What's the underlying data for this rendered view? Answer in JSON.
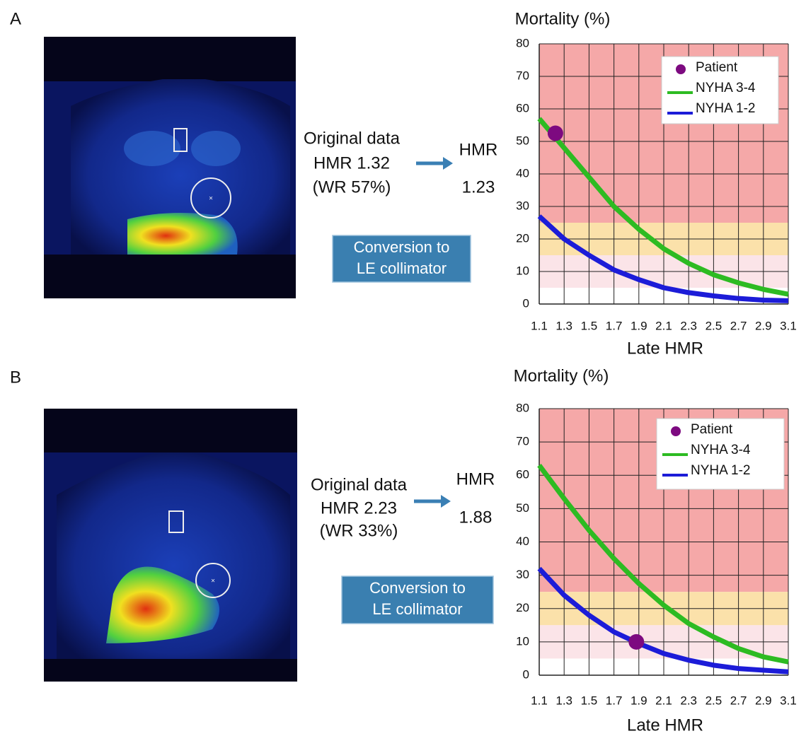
{
  "panels": [
    {
      "label": "A",
      "original": [
        "Original data",
        "HMR 1.32",
        "(WR 57%)"
      ],
      "converted_title": "HMR",
      "converted_value": "1.23",
      "button": [
        "Conversion to",
        "LE collimator"
      ]
    },
    {
      "label": "B",
      "original": [
        "Original data",
        "HMR 2.23",
        "(WR 33%)"
      ],
      "converted_title": "HMR",
      "converted_value": "1.88",
      "button": [
        "Conversion to",
        "LE collimator"
      ]
    }
  ],
  "chart_data": [
    {
      "type": "line",
      "y_label": "Mortality (%)",
      "x_label": "Late HMR",
      "x": [
        1.1,
        1.3,
        1.5,
        1.7,
        1.9,
        2.1,
        2.3,
        2.5,
        2.7,
        2.9,
        3.1
      ],
      "xlim": [
        1.1,
        3.1
      ],
      "xticks": [
        1.1,
        1.3,
        1.5,
        1.7,
        1.9,
        2.1,
        2.3,
        2.5,
        2.7,
        2.9,
        3.1
      ],
      "ylim": [
        0,
        80
      ],
      "yticks": [
        0,
        10,
        20,
        30,
        40,
        50,
        60,
        70,
        80
      ],
      "grid": true,
      "legend": "upper right",
      "bands": [
        {
          "from": 25,
          "to": 80,
          "color": "#f5a8a8"
        },
        {
          "from": 15,
          "to": 25,
          "color": "#fbe1aa"
        },
        {
          "from": 5,
          "to": 15,
          "color": "#fbe4e8"
        }
      ],
      "series": [
        {
          "name": "Patient",
          "type": "scatter",
          "color": "#7d0a80",
          "x": [
            1.23
          ],
          "values": [
            52.5
          ]
        },
        {
          "name": "NYHA 3-4",
          "color": "#2dbb22",
          "values": [
            57,
            48,
            39,
            30,
            23,
            17,
            12.5,
            9,
            6.5,
            4.5,
            3
          ]
        },
        {
          "name": "NYHA 1-2",
          "color": "#1c1cd8",
          "values": [
            27,
            20,
            15,
            10.5,
            7.5,
            5,
            3.5,
            2.5,
            1.7,
            1.2,
            1
          ]
        }
      ]
    },
    {
      "type": "line",
      "y_label": "Mortality (%)",
      "x_label": "Late HMR",
      "x": [
        1.1,
        1.3,
        1.5,
        1.7,
        1.9,
        2.1,
        2.3,
        2.5,
        2.7,
        2.9,
        3.1
      ],
      "xlim": [
        1.1,
        3.1
      ],
      "xticks": [
        1.1,
        1.3,
        1.5,
        1.7,
        1.9,
        2.1,
        2.3,
        2.5,
        2.7,
        2.9,
        3.1
      ],
      "ylim": [
        0,
        80
      ],
      "yticks": [
        0,
        10,
        20,
        30,
        40,
        50,
        60,
        70,
        80
      ],
      "grid": true,
      "legend": "upper right",
      "bands": [
        {
          "from": 25,
          "to": 80,
          "color": "#f5a8a8"
        },
        {
          "from": 15,
          "to": 25,
          "color": "#fbe1aa"
        },
        {
          "from": 5,
          "to": 15,
          "color": "#fbe4e8"
        }
      ],
      "series": [
        {
          "name": "Patient",
          "type": "scatter",
          "color": "#7d0a80",
          "x": [
            1.88
          ],
          "values": [
            10
          ]
        },
        {
          "name": "NYHA 3-4",
          "color": "#2dbb22",
          "values": [
            63,
            53,
            43.5,
            35,
            27.5,
            21,
            15.5,
            11.5,
            8,
            5.5,
            4
          ]
        },
        {
          "name": "NYHA 1-2",
          "color": "#1c1cd8",
          "values": [
            32,
            24,
            18,
            13,
            9.5,
            6.5,
            4.5,
            3,
            2,
            1.5,
            1
          ]
        }
      ]
    }
  ]
}
